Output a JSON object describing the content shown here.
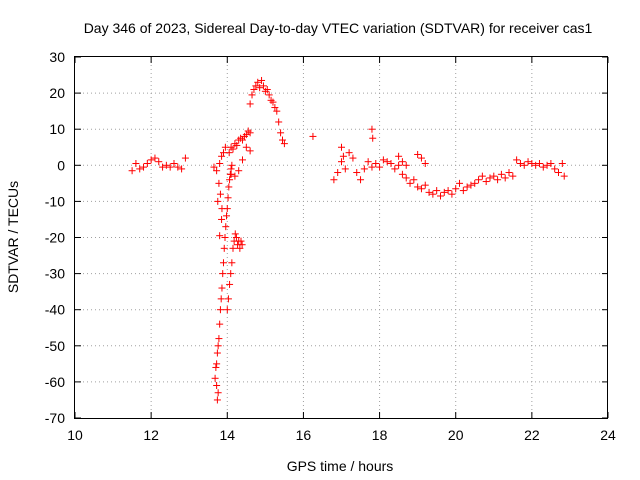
{
  "chart_data": {
    "type": "scatter",
    "title": "Day 346 of 2023, Sidereal Day-to-day VTEC variation (SDTVAR) for receiver cas1",
    "xlabel": "GPS time / hours",
    "ylabel": "SDTVAR / TECUs",
    "xlim": [
      10,
      24
    ],
    "ylim": [
      -70,
      30
    ],
    "xticks": [
      "10",
      "12",
      "14",
      "16",
      "18",
      "20",
      "22",
      "24"
    ],
    "yticks": [
      "30",
      "20",
      "10",
      "0",
      "-10",
      "-20",
      "-30",
      "-40",
      "-50",
      "-60",
      "-70"
    ],
    "grid": true,
    "marker": "+",
    "color": "#ff0000",
    "series": [
      {
        "name": "cas1",
        "segments": [
          {
            "x": [
              11.5,
              11.6,
              11.7,
              11.8,
              11.9,
              12.0,
              12.1,
              12.2,
              12.3,
              12.4,
              12.5,
              12.6,
              12.7,
              12.8
            ],
            "y": [
              -1.5,
              0.5,
              -1.0,
              -0.5,
              0.5,
              1.5,
              2.0,
              1.0,
              -0.5,
              0.0,
              -0.5,
              0.5,
              -0.5,
              -1.0
            ]
          },
          {
            "x": [
              12.9
            ],
            "y": [
              2.0
            ]
          },
          {
            "x": [
              13.65,
              13.72,
              13.8,
              13.85,
              13.9,
              13.95
            ],
            "y": [
              -0.5,
              -1.5,
              0.5,
              2.5,
              3.5,
              5.0
            ]
          },
          {
            "x": [
              13.68,
              13.7,
              13.72,
              13.74,
              13.76,
              13.78,
              13.8,
              13.82,
              13.84,
              13.86,
              13.88,
              13.9,
              13.92,
              13.94,
              13.96,
              13.98,
              14.0,
              14.02,
              14.04,
              14.06,
              14.08,
              14.1,
              14.12
            ],
            "y": [
              -59,
              -56,
              -55,
              -52,
              -50,
              -48,
              -44,
              -40,
              -37,
              -34,
              -30,
              -27,
              -23,
              -20,
              -17,
              -14,
              -12,
              -9,
              -6,
              -4,
              -2.5,
              -1.0,
              0.0
            ]
          },
          {
            "x": [
              13.72,
              13.74,
              13.76
            ],
            "y": [
              -61,
              -65,
              -63
            ]
          },
          {
            "x": [
              13.75,
              13.8,
              13.85
            ],
            "y": [
              -10,
              -19.5,
              -15
            ]
          },
          {
            "x": [
              13.78,
              13.82,
              13.86
            ],
            "y": [
              -5,
              -8,
              -12
            ]
          },
          {
            "x": [
              14.0,
              14.03,
              14.06,
              14.09,
              14.12,
              14.15,
              14.18,
              14.21,
              14.24,
              14.27,
              14.3,
              14.33,
              14.36,
              14.39
            ],
            "y": [
              -40,
              -37,
              -33,
              -30,
              -27,
              -23,
              -21,
              -19,
              -20,
              -22,
              -21,
              -23,
              -21,
              -22
            ]
          },
          {
            "x": [
              14.05,
              14.1,
              14.15,
              14.2,
              14.25,
              14.3,
              14.35,
              14.4,
              14.45,
              14.5,
              14.55,
              14.6
            ],
            "y": [
              3.5,
              5.0,
              4.5,
              6.0,
              5.5,
              7.0,
              7.5,
              7.0,
              8.0,
              8.5,
              9.5,
              9.0
            ]
          },
          {
            "x": [
              14.1,
              14.2,
              14.3,
              14.4,
              14.5,
              14.6
            ],
            "y": [
              -2.5,
              -3.0,
              -1.5,
              1.5,
              5.0,
              4.0
            ]
          },
          {
            "x": [
              14.6,
              14.65,
              14.7,
              14.75,
              14.8,
              14.85,
              14.9,
              14.95,
              15.0,
              15.05,
              15.1,
              15.15,
              15.2,
              15.25,
              15.3,
              15.35,
              15.4,
              15.45,
              15.5
            ],
            "y": [
              17,
              19.5,
              21,
              22,
              23,
              21.5,
              23.5,
              22,
              20.5,
              21,
              19.5,
              18,
              17.5,
              16,
              15,
              12,
              9,
              7,
              6
            ]
          },
          {
            "x": [
              16.25
            ],
            "y": [
              8.0
            ]
          },
          {
            "x": [
              16.8,
              16.9,
              17.0,
              17.1,
              17.2,
              17.3,
              17.4,
              17.5,
              17.6,
              17.7,
              17.8,
              17.9,
              18.0,
              18.1,
              18.2,
              18.3
            ],
            "y": [
              -4.0,
              -2.0,
              1.0,
              -1.0,
              3.5,
              2.0,
              -2.0,
              -4.0,
              -1.0,
              1.0,
              -0.5,
              0.5,
              -0.5,
              1.5,
              1.0,
              0.5
            ]
          },
          {
            "x": [
              17.0,
              17.05,
              17.8,
              17.82
            ],
            "y": [
              5.0,
              2.5,
              10.0,
              7.5
            ]
          },
          {
            "x": [
              18.4,
              18.5,
              18.6,
              18.7,
              18.8,
              18.9,
              19.0,
              19.1,
              19.2,
              19.3,
              19.4,
              19.5,
              19.6,
              19.7,
              19.8,
              19.9,
              20.0,
              20.1,
              20.2,
              20.3,
              20.4,
              20.5,
              20.6,
              20.7,
              20.8,
              20.9,
              21.0,
              21.1,
              21.2,
              21.3,
              21.4,
              21.5,
              21.6,
              21.7,
              21.8,
              21.9,
              22.0,
              22.1,
              22.2,
              22.3,
              22.4,
              22.5,
              22.6,
              22.7,
              22.8
            ],
            "y": [
              -1.0,
              0.0,
              -2.5,
              -3.5,
              -5.0,
              -4.0,
              -6.0,
              -6.5,
              -5.5,
              -7.5,
              -8.0,
              -7.0,
              -8.5,
              -7.5,
              -7.0,
              -8.0,
              -6.5,
              -5.0,
              -7.0,
              -6.0,
              -5.5,
              -5.0,
              -4.0,
              -3.0,
              -4.5,
              -3.5,
              -3.0,
              -4.0,
              -2.5,
              -3.5,
              -2.0,
              -3.0,
              1.5,
              0.5,
              0.0,
              1.0,
              0.5,
              0.0,
              0.5,
              -0.5,
              0.0,
              0.5,
              -1.0,
              -2.0,
              0.5
            ]
          },
          {
            "x": [
              18.5,
              18.6,
              18.7,
              19.0,
              19.1,
              19.2
            ],
            "y": [
              2.5,
              1.0,
              0.0,
              3.0,
              2.0,
              0.5
            ]
          },
          {
            "x": [
              22.85
            ],
            "y": [
              -3.0
            ]
          }
        ]
      }
    ]
  }
}
